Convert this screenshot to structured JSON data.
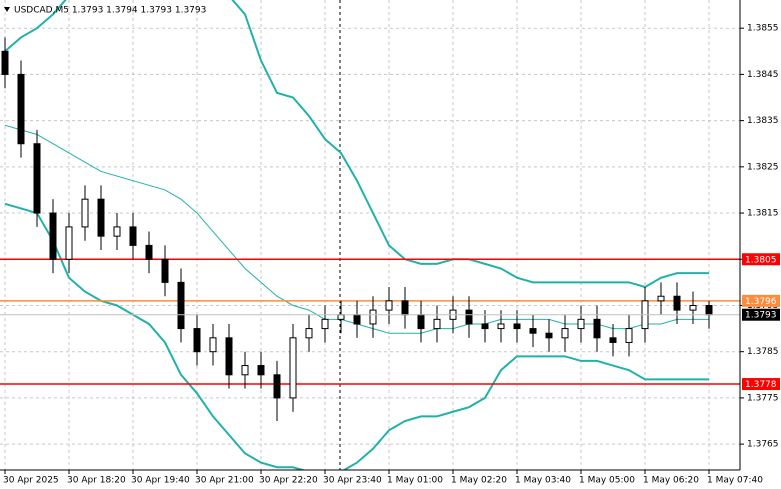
{
  "chart_data": {
    "type": "candlestick",
    "title": "USDCAD,M5 1.3793 1.3794 1.3793 1.3793",
    "x_labels": [
      "30 Apr 2025",
      "30 Apr 18:20",
      "30 Apr 19:40",
      "30 Apr 21:00",
      "30 Apr 22:20",
      "30 Apr 23:40",
      "1 May 01:00",
      "1 May 02:20",
      "1 May 03:40",
      "1 May 05:00",
      "1 May 06:20",
      "1 May 07:40"
    ],
    "open": [
      1.385,
      1.3845,
      1.383,
      1.3815,
      1.3805,
      1.3812,
      1.3818,
      1.381,
      1.3812,
      1.3808,
      1.3805,
      1.38,
      1.379,
      1.3785,
      1.3788,
      1.378,
      1.3782,
      1.378,
      1.3775,
      1.3788,
      1.379,
      1.3792,
      1.3793,
      1.3791,
      1.3794,
      1.3796,
      1.3793,
      1.379,
      1.3792,
      1.3794,
      1.3791,
      1.379,
      1.3791,
      1.379,
      1.3789,
      1.3788,
      1.379,
      1.3792,
      1.3788,
      1.3787,
      1.379,
      1.3796,
      1.3797,
      1.3794,
      1.3795
    ],
    "high": [
      1.3853,
      1.3848,
      1.3833,
      1.3818,
      1.3815,
      1.3821,
      1.3821,
      1.3815,
      1.3815,
      1.3811,
      1.3808,
      1.3803,
      1.3793,
      1.3791,
      1.3791,
      1.3785,
      1.3785,
      1.3783,
      1.3791,
      1.3793,
      1.3795,
      1.3796,
      1.3796,
      1.3797,
      1.3799,
      1.3799,
      1.3796,
      1.3795,
      1.3797,
      1.3797,
      1.3794,
      1.3794,
      1.3794,
      1.3793,
      1.3792,
      1.3793,
      1.3795,
      1.3795,
      1.3791,
      1.3793,
      1.3799,
      1.38,
      1.38,
      1.3798,
      1.3796
    ],
    "low": [
      1.3842,
      1.3827,
      1.3812,
      1.3802,
      1.3802,
      1.3809,
      1.3807,
      1.3807,
      1.3805,
      1.3802,
      1.3797,
      1.3787,
      1.3782,
      1.3782,
      1.3777,
      1.3777,
      1.3777,
      1.377,
      1.3772,
      1.3785,
      1.3787,
      1.3789,
      1.3788,
      1.3788,
      1.3791,
      1.379,
      1.3787,
      1.3787,
      1.3789,
      1.3788,
      1.3787,
      1.3787,
      1.3787,
      1.3786,
      1.3785,
      1.3785,
      1.3787,
      1.3785,
      1.3784,
      1.3784,
      1.3787,
      1.3793,
      1.3791,
      1.3791,
      1.379
    ],
    "close": [
      1.3845,
      1.383,
      1.3815,
      1.3805,
      1.3812,
      1.3818,
      1.381,
      1.3812,
      1.3808,
      1.3805,
      1.38,
      1.379,
      1.3785,
      1.3788,
      1.378,
      1.3782,
      1.378,
      1.3775,
      1.3788,
      1.379,
      1.3792,
      1.3793,
      1.3791,
      1.3794,
      1.3796,
      1.3793,
      1.379,
      1.3792,
      1.3794,
      1.3791,
      1.379,
      1.3791,
      1.379,
      1.3789,
      1.3788,
      1.379,
      1.3792,
      1.3788,
      1.3787,
      1.379,
      1.3796,
      1.3797,
      1.3794,
      1.3795,
      1.3793
    ],
    "bands": [
      {
        "color": "#20b2aa",
        "width": 2,
        "values": [
          1.385,
          1.3853,
          1.3855,
          1.3858,
          1.3862,
          1.3863,
          1.3864,
          1.3864,
          1.3864,
          1.3864,
          1.3864,
          1.3864,
          1.3864,
          1.3864,
          1.3862,
          1.3858,
          1.3848,
          1.3841,
          1.384,
          1.3836,
          1.3831,
          1.3828,
          1.3822,
          1.3815,
          1.3808,
          1.3805,
          1.3804,
          1.3804,
          1.3805,
          1.3805,
          1.3804,
          1.3803,
          1.3801,
          1.38,
          1.38,
          1.38,
          1.38,
          1.38,
          1.38,
          1.38,
          1.3799,
          1.3801,
          1.3802,
          1.3802,
          1.3802
        ]
      },
      {
        "color": "#20b2aa",
        "width": 1,
        "values": [
          1.3834,
          1.3833,
          1.3832,
          1.383,
          1.3828,
          1.3826,
          1.3824,
          1.3823,
          1.3822,
          1.3821,
          1.382,
          1.3818,
          1.3815,
          1.3811,
          1.3807,
          1.3803,
          1.38,
          1.3797,
          1.3795,
          1.3794,
          1.3792,
          1.3792,
          1.3791,
          1.379,
          1.3789,
          1.3789,
          1.3789,
          1.379,
          1.379,
          1.3791,
          1.3791,
          1.3792,
          1.3792,
          1.3792,
          1.3792,
          1.3791,
          1.3791,
          1.3791,
          1.379,
          1.379,
          1.3791,
          1.3791,
          1.3792,
          1.3792,
          1.3792
        ]
      },
      {
        "color": "#20b2aa",
        "width": 2,
        "values": [
          1.3817,
          1.3816,
          1.3815,
          1.3809,
          1.3801,
          1.3798,
          1.3796,
          1.3795,
          1.3793,
          1.3791,
          1.3787,
          1.378,
          1.3776,
          1.3771,
          1.3767,
          1.3763,
          1.3761,
          1.376,
          1.376,
          1.3759,
          1.3759,
          1.3759,
          1.3761,
          1.3764,
          1.3768,
          1.377,
          1.3771,
          1.3771,
          1.3772,
          1.3773,
          1.3775,
          1.3781,
          1.3784,
          1.3784,
          1.3784,
          1.3784,
          1.3783,
          1.3783,
          1.3782,
          1.3781,
          1.3779,
          1.3779,
          1.3779,
          1.3779,
          1.3779
        ]
      }
    ],
    "levels": [
      {
        "value": 1.3805,
        "color": "#ff0000"
      },
      {
        "value": 1.3796,
        "color": "#ff8c3c"
      },
      {
        "value": 1.3778,
        "color": "#ff0000"
      }
    ],
    "last_price": {
      "value": 1.3793,
      "color": "#000000"
    },
    "ylim": [
      1.37594,
      1.38611
    ],
    "yticks": [
      1.3855,
      1.3845,
      1.3835,
      1.3825,
      1.3815,
      1.3805,
      1.3795,
      1.3785,
      1.3775,
      1.3765
    ],
    "grid": true
  }
}
